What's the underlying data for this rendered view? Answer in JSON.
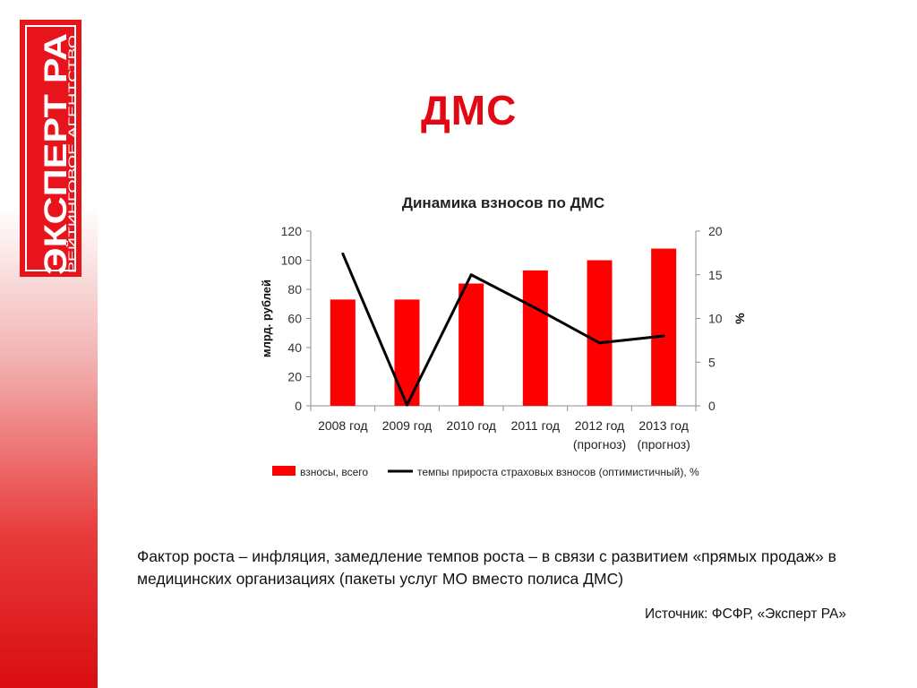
{
  "logo": {
    "main": "ЭКСПЕРТ РА",
    "sub": "РЕЙТИНГОВОЕ АГЕНТСТВО",
    "colors": {
      "brand": "#e8141c",
      "text": "#ffffff"
    }
  },
  "slide": {
    "title": "ДМС",
    "body": "Фактор роста – инфляция, замедление темпов роста – в связи с развитием «прямых продаж» в медицинских организациях (пакеты услуг МО вместо полиса ДМС)",
    "source": "Источник: ФСФР,  «Эксперт РА»",
    "colors": {
      "title": "#e30613"
    }
  },
  "chart_data": {
    "type": "bar",
    "title": "Динамика взносов по ДМС",
    "categories": [
      [
        "2008 год"
      ],
      [
        "2009 год"
      ],
      [
        "2010 год"
      ],
      [
        "2011 год"
      ],
      [
        "2012 год",
        "(прогноз)"
      ],
      [
        "2013 год",
        "(прогноз)"
      ]
    ],
    "series": [
      {
        "name": "взносы, всего",
        "type": "bar",
        "axis": "left",
        "color": "#ff0000",
        "values": [
          73,
          73,
          84,
          93,
          100,
          108
        ]
      },
      {
        "name": "темпы прироста страховых взносов (оптимистичный), %",
        "type": "line",
        "axis": "right",
        "color": "#000000",
        "values": [
          17.4,
          0.1,
          15,
          11.2,
          7.2,
          8
        ]
      }
    ],
    "ylabel": "млрд. рублей",
    "y2label": "%",
    "ylim": [
      0,
      120
    ],
    "yticks": [
      0,
      20,
      40,
      60,
      80,
      100,
      120
    ],
    "y2lim": [
      0,
      20
    ],
    "y2ticks": [
      0,
      5,
      10,
      15,
      20
    ],
    "grid": false,
    "legend": "bottom"
  }
}
